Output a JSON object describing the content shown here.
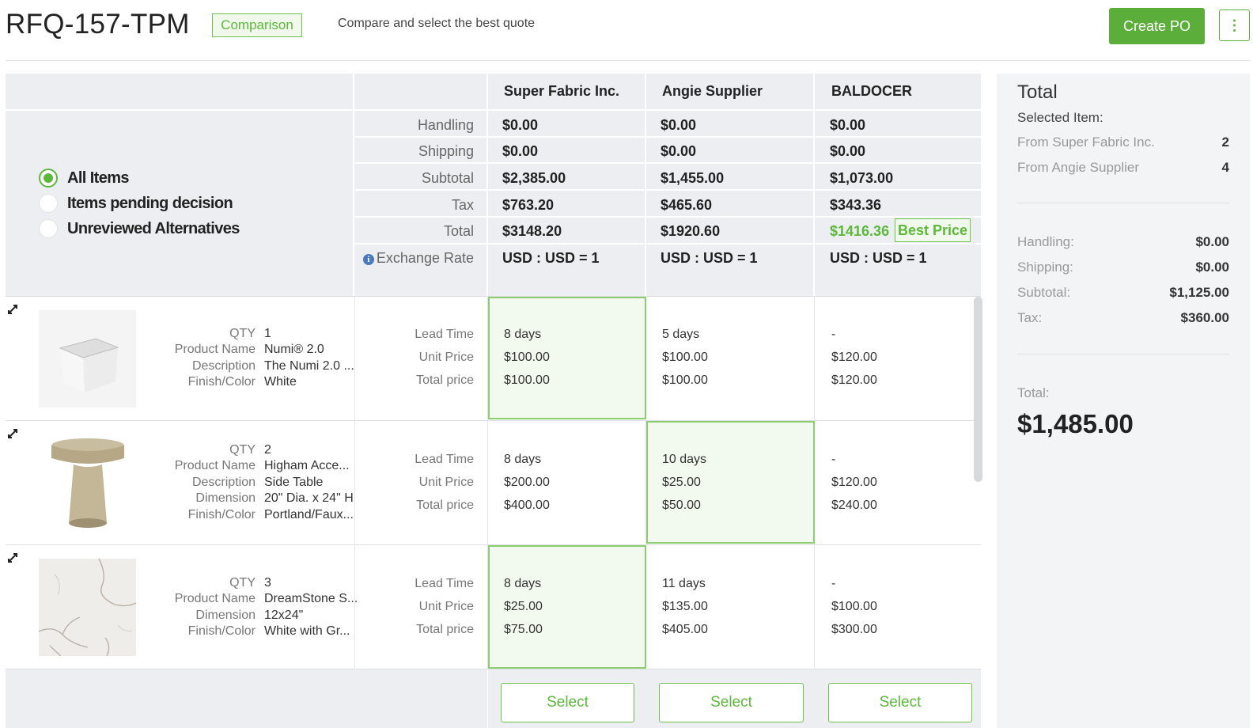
{
  "header": {
    "title": "RFQ-157-TPM",
    "badge": "Comparison",
    "subtitle": "Compare and select the best quote",
    "create_po": "Create PO",
    "more_menu": "⋮"
  },
  "colors": {
    "accent_green": "#5cae3a",
    "highlight_green": "#5cb83a",
    "grid_grey": "#eceef1",
    "side_panel_bg": "#f3f4f6"
  },
  "filters": [
    {
      "label": "All Items",
      "selected": true
    },
    {
      "label": "Items pending decision",
      "selected": false
    },
    {
      "label": "Unreviewed Alternatives",
      "selected": false
    }
  ],
  "summary_labels": [
    "Handling",
    "Shipping",
    "Subtotal",
    "Tax",
    "Total",
    "Exchange Rate"
  ],
  "suppliers": [
    {
      "name": "Super Fabric Inc.",
      "handling": "$0.00",
      "shipping": "$0.00",
      "subtotal": "$2,385.00",
      "tax": "$763.20",
      "total": "$3148.20",
      "exchange_rate": "USD : USD = 1",
      "select": "Select"
    },
    {
      "name": "Angie Supplier",
      "handling": "$0.00",
      "shipping": "$0.00",
      "subtotal": "$1,455.00",
      "tax": "$465.60",
      "total": "$1920.60",
      "exchange_rate": "USD : USD = 1",
      "select": "Select"
    },
    {
      "name": "BALDOCER",
      "handling": "$0.00",
      "shipping": "$0.00",
      "subtotal": "$1,073.00",
      "tax": "$343.36",
      "total": "$1416.36",
      "exchange_rate": "USD : USD = 1",
      "best_price": "Best Price",
      "select": "Select"
    }
  ],
  "quote_labels": {
    "lead_time": "Lead Time",
    "unit_price": "Unit Price",
    "total_price": "Total price"
  },
  "items": [
    {
      "attrs": [
        {
          "label": "QTY",
          "value": "1"
        },
        {
          "label": "Product Name",
          "value": "Numi® 2.0"
        },
        {
          "label": "Description",
          "value": "The Numi 2.0 ..."
        },
        {
          "label": "Finish/Color",
          "value": "White"
        }
      ],
      "quotes": [
        {
          "lead_time": "8 days",
          "unit_price": "$100.00",
          "total_price": "$100.00"
        },
        {
          "lead_time": "5 days",
          "unit_price": "$100.00",
          "total_price": "$100.00"
        },
        {
          "lead_time": "-",
          "unit_price": "$120.00",
          "total_price": "$120.00"
        }
      ],
      "selected_supplier": 0
    },
    {
      "attrs": [
        {
          "label": "QTY",
          "value": "2"
        },
        {
          "label": "Product Name",
          "value": "Higham Acce..."
        },
        {
          "label": "Description",
          "value": "Side Table"
        },
        {
          "label": "Dimension",
          "value": "20\" Dia. x 24\" H"
        },
        {
          "label": "Finish/Color",
          "value": "Portland/Faux..."
        }
      ],
      "quotes": [
        {
          "lead_time": "8 days",
          "unit_price": "$200.00",
          "total_price": "$400.00"
        },
        {
          "lead_time": "10 days",
          "unit_price": "$25.00",
          "total_price": "$50.00"
        },
        {
          "lead_time": "-",
          "unit_price": "$120.00",
          "total_price": "$240.00"
        }
      ],
      "selected_supplier": 1
    },
    {
      "attrs": [
        {
          "label": "QTY",
          "value": "3"
        },
        {
          "label": "Product Name",
          "value": "DreamStone S..."
        },
        {
          "label": "Dimension",
          "value": "12x24\""
        },
        {
          "label": "Finish/Color",
          "value": "White with Gr..."
        }
      ],
      "quotes": [
        {
          "lead_time": "8 days",
          "unit_price": "$25.00",
          "total_price": "$75.00"
        },
        {
          "lead_time": "11 days",
          "unit_price": "$135.00",
          "total_price": "$405.00"
        },
        {
          "lead_time": "-",
          "unit_price": "$100.00",
          "total_price": "$300.00"
        }
      ],
      "selected_supplier": 0
    }
  ],
  "side": {
    "title": "Total",
    "selected_label": "Selected Item:",
    "from": [
      {
        "label": "From Super Fabric Inc.",
        "count": "2"
      },
      {
        "label": "From Angie Supplier",
        "count": "4"
      }
    ],
    "handling_label": "Handling:",
    "handling": "$0.00",
    "shipping_label": "Shipping:",
    "shipping": "$0.00",
    "subtotal_label": "Subtotal:",
    "subtotal": "$1,125.00",
    "tax_label": "Tax:",
    "tax": "$360.00",
    "total_label": "Total:",
    "total": "$1,485.00"
  }
}
